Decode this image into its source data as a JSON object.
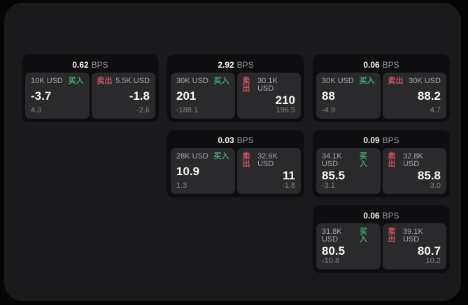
{
  "labels": {
    "bps_unit": "BPS",
    "buy": "买入",
    "sell": "卖出"
  },
  "colors": {
    "buy_green": "#3fae6a",
    "sell_red": "#cd5564",
    "panel_bg": "#1a1a1c",
    "card_bg": "#0e0e10",
    "tile_bg": "#2a2a2c"
  },
  "cards": [
    {
      "row": 1,
      "col": 1,
      "bps": "0.62",
      "buy": {
        "amount": "10K USD",
        "price": "-3.7",
        "delta": "4.3"
      },
      "sell": {
        "amount": "5.5K USD",
        "price": "-1.8",
        "delta": "-2.6"
      }
    },
    {
      "row": 1,
      "col": 2,
      "bps": "2.92",
      "buy": {
        "amount": "30K USD",
        "price": "201",
        "delta": "-188.1"
      },
      "sell": {
        "amount": "30.1K USD",
        "price": "210",
        "delta": "196.5"
      }
    },
    {
      "row": 1,
      "col": 3,
      "bps": "0.06",
      "buy": {
        "amount": "30K USD",
        "price": "88",
        "delta": "-4.9"
      },
      "sell": {
        "amount": "30K USD",
        "price": "88.2",
        "delta": "4.7"
      }
    },
    {
      "row": 2,
      "col": 2,
      "bps": "0.03",
      "buy": {
        "amount": "28K USD",
        "price": "10.9",
        "delta": "1.3"
      },
      "sell": {
        "amount": "32.6K USD",
        "price": "11",
        "delta": "-1.8"
      }
    },
    {
      "row": 2,
      "col": 3,
      "bps": "0.09",
      "buy": {
        "amount": "34.1K USD",
        "price": "85.5",
        "delta": "-3.1"
      },
      "sell": {
        "amount": "32.8K USD",
        "price": "85.8",
        "delta": "3.0"
      }
    },
    {
      "row": 3,
      "col": 3,
      "bps": "0.06",
      "buy": {
        "amount": "31.8K USD",
        "price": "80.5",
        "delta": "-10.8"
      },
      "sell": {
        "amount": "39.1K USD",
        "price": "80.7",
        "delta": "10.2"
      }
    }
  ]
}
